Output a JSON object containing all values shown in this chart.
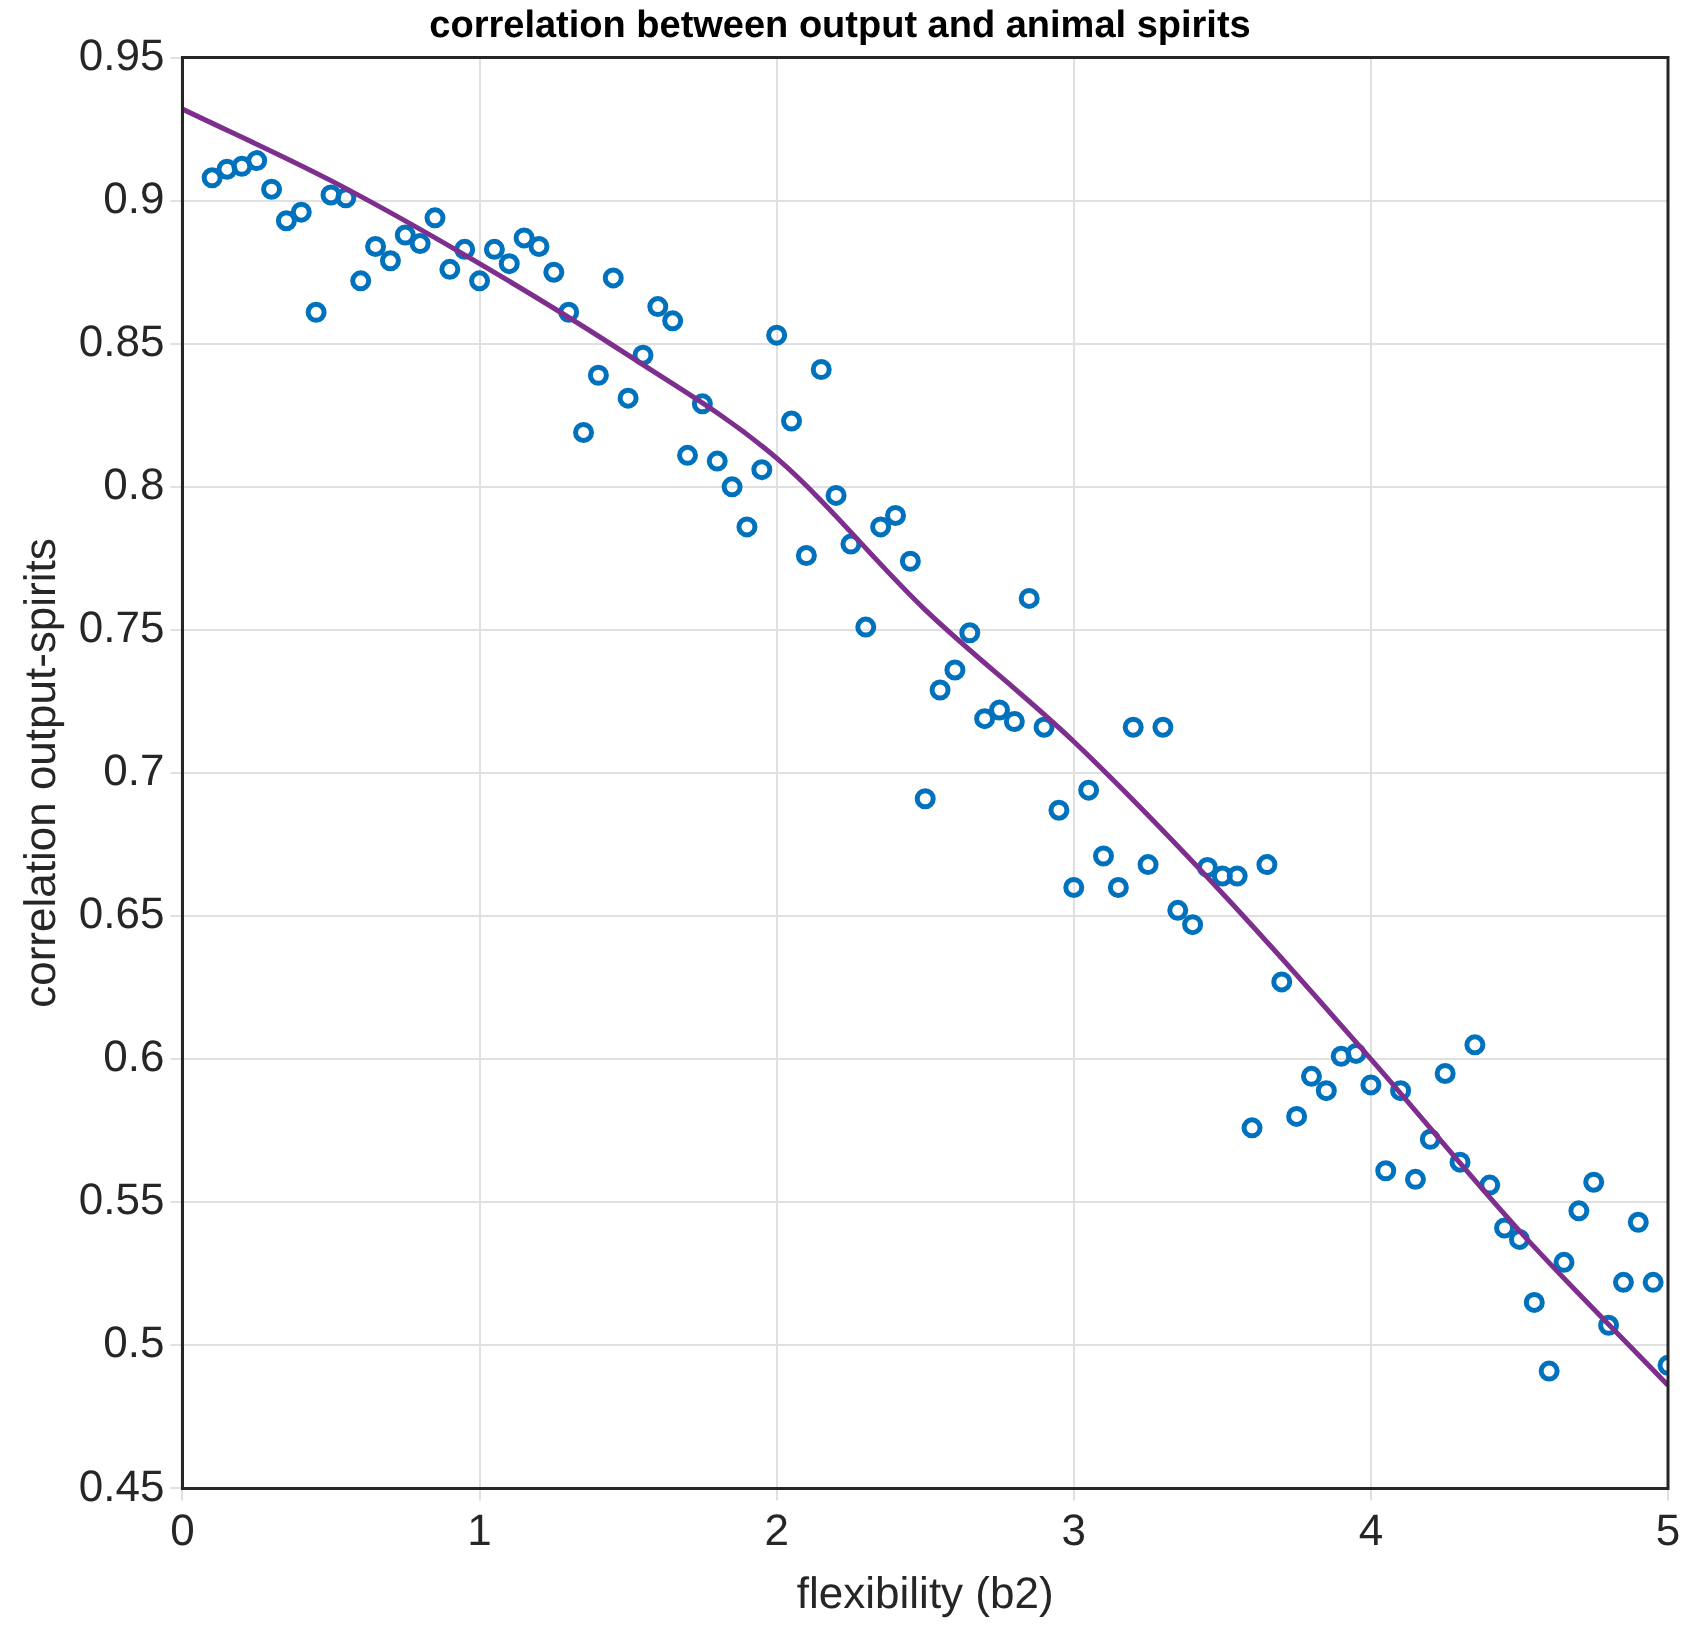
{
  "chart_data": {
    "type": "scatter",
    "title": "correlation between output and animal spirits",
    "xlabel": "flexibility (b2)",
    "ylabel": "correlation output-spirits",
    "xlim": [
      0,
      5
    ],
    "xticks": [
      0,
      1,
      2,
      3,
      4,
      5
    ],
    "ylim": [
      0.45,
      0.95
    ],
    "yticks": [
      0.45,
      0.5,
      0.55,
      0.6,
      0.65,
      0.7,
      0.75,
      0.8,
      0.85,
      0.9,
      0.95
    ],
    "grid": true,
    "marker": "circle",
    "series": [
      {
        "color": "#0072bd",
        "x": [
          0.1,
          0.15,
          0.2,
          0.25,
          0.3,
          0.35,
          0.4,
          0.45,
          0.5,
          0.55,
          0.6,
          0.65,
          0.7,
          0.75,
          0.8,
          0.85,
          0.9,
          0.95,
          1.0,
          1.05,
          1.1,
          1.15,
          1.2,
          1.25,
          1.3,
          1.35,
          1.4,
          1.45,
          1.5,
          1.55,
          1.6,
          1.65,
          1.7,
          1.75,
          1.8,
          1.85,
          1.9,
          1.95,
          2.0,
          2.05,
          2.1,
          2.15,
          2.2,
          2.25,
          2.3,
          2.35,
          2.4,
          2.45,
          2.5,
          2.55,
          2.6,
          2.65,
          2.7,
          2.75,
          2.8,
          2.85,
          2.9,
          2.95,
          3.0,
          3.05,
          3.1,
          3.15,
          3.2,
          3.25,
          3.3,
          3.35,
          3.4,
          3.45,
          3.5,
          3.55,
          3.6,
          3.65,
          3.7,
          3.75,
          3.8,
          3.85,
          3.9,
          3.95,
          4.0,
          4.05,
          4.1,
          4.15,
          4.2,
          4.25,
          4.3,
          4.35,
          4.4,
          4.45,
          4.5,
          4.55,
          4.6,
          4.65,
          4.7,
          4.75,
          4.8,
          4.85,
          4.9,
          4.95,
          5.0
        ],
        "values": [
          0.908,
          0.911,
          0.912,
          0.914,
          0.904,
          0.893,
          0.896,
          0.861,
          0.902,
          0.901,
          0.872,
          0.884,
          0.879,
          0.888,
          0.885,
          0.894,
          0.876,
          0.883,
          0.872,
          0.883,
          0.878,
          0.887,
          0.884,
          0.875,
          0.861,
          0.819,
          0.839,
          0.873,
          0.831,
          0.846,
          0.863,
          0.858,
          0.811,
          0.829,
          0.809,
          0.8,
          0.786,
          0.806,
          0.853,
          0.823,
          0.776,
          0.841,
          0.797,
          0.78,
          0.751,
          0.786,
          0.79,
          0.774,
          0.691,
          0.729,
          0.736,
          0.749,
          0.719,
          0.722,
          0.718,
          0.761,
          0.716,
          0.687,
          0.66,
          0.694,
          0.671,
          0.66,
          0.716,
          0.668,
          0.716,
          0.652,
          0.647,
          0.667,
          0.664,
          0.664,
          0.576,
          0.668,
          0.627,
          0.58,
          0.594,
          0.589,
          0.601,
          0.602,
          0.591,
          0.561,
          0.589,
          0.558,
          0.572,
          0.595,
          0.564,
          0.605,
          0.556,
          0.541,
          0.537,
          0.515,
          0.491,
          0.529,
          0.547,
          0.557,
          0.507,
          0.522,
          0.543,
          0.522,
          0.493
        ]
      },
      {
        "type": "line",
        "color": "#7e2f8e",
        "marker": "none",
        "line_style": "solid",
        "x": [
          0,
          0.5,
          1,
          1.5,
          2,
          2.5,
          3,
          3.5,
          4,
          4.5,
          5
        ],
        "values": [
          0.932,
          0.907,
          0.878,
          0.846,
          0.81,
          0.757,
          0.711,
          0.658,
          0.6,
          0.54,
          0.486
        ]
      }
    ]
  }
}
